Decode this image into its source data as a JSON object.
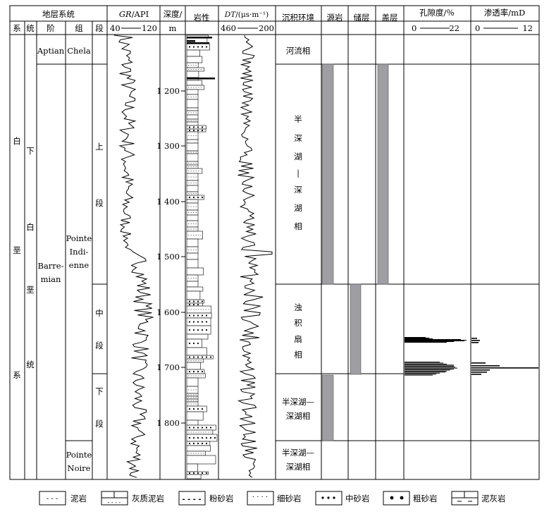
{
  "header": {
    "strat_system": "地层系统",
    "xi": "系",
    "tong": "统",
    "jie": "阶",
    "zu": "组",
    "duan": "段",
    "gr_label_italic": "GR",
    "gr_label_unit": "/API",
    "gr_min": "40",
    "gr_max": "120",
    "depth_label": "深度/",
    "depth_unit": "m",
    "lithology": "岩性",
    "dt_label_italic": "DT",
    "dt_label_unit": "/(μs·m⁻¹)",
    "dt_min": "460",
    "dt_max": "200",
    "environment": "沉积环境",
    "source_rock": "源岩",
    "reservoir": "储层",
    "cap_rock": "盖层",
    "porosity_label": "孔隙度/％",
    "porosity_min": "0",
    "porosity_max": "22",
    "perm_label": "渗透率/mD",
    "perm_min": "0",
    "perm_max": "12"
  },
  "strat": {
    "system_chars": [
      "白",
      "垩",
      "系"
    ],
    "series_top": "下",
    "series_chars": [
      "白",
      "垩",
      "统"
    ],
    "stage_aptian": "Aptian",
    "stage_barremian": [
      "Barre-",
      "mian"
    ],
    "fm_chela": "Chela",
    "fm_pointe_indienne": [
      "Pointe",
      "Indi-",
      "enne"
    ],
    "fm_pointe_noire": [
      "Pointe",
      "Noire"
    ],
    "member_upper": [
      "上",
      "段"
    ],
    "member_middle": [
      "中",
      "段"
    ],
    "member_lower": [
      "下",
      "段"
    ]
  },
  "depth_ticks": [
    "1 200",
    "1 300",
    "1 400",
    "1 500",
    "1 600",
    "1 700",
    "1 800"
  ],
  "environments": {
    "fluvial": "河流相",
    "semi_deep_1": [
      "半",
      "深",
      "湖",
      "|",
      "深",
      "湖",
      "相"
    ],
    "turbidite": [
      "浊",
      "积",
      "扇",
      "相"
    ],
    "semi_deep_2": [
      "半深湖—",
      "深湖相"
    ],
    "semi_deep_3": [
      "半深湖—",
      "深湖相"
    ]
  },
  "legend": {
    "mudstone": "泥岩",
    "calc_mudstone": "灰质泥岩",
    "siltstone": "粉砂岩",
    "fine_sandstone": "细砂岩",
    "medium_sandstone": "中砂岩",
    "coarse_sandstone": "粗砂岩",
    "marl": "泥灰岩"
  },
  "colors": {
    "bar_fill": "#9f9fa3"
  }
}
